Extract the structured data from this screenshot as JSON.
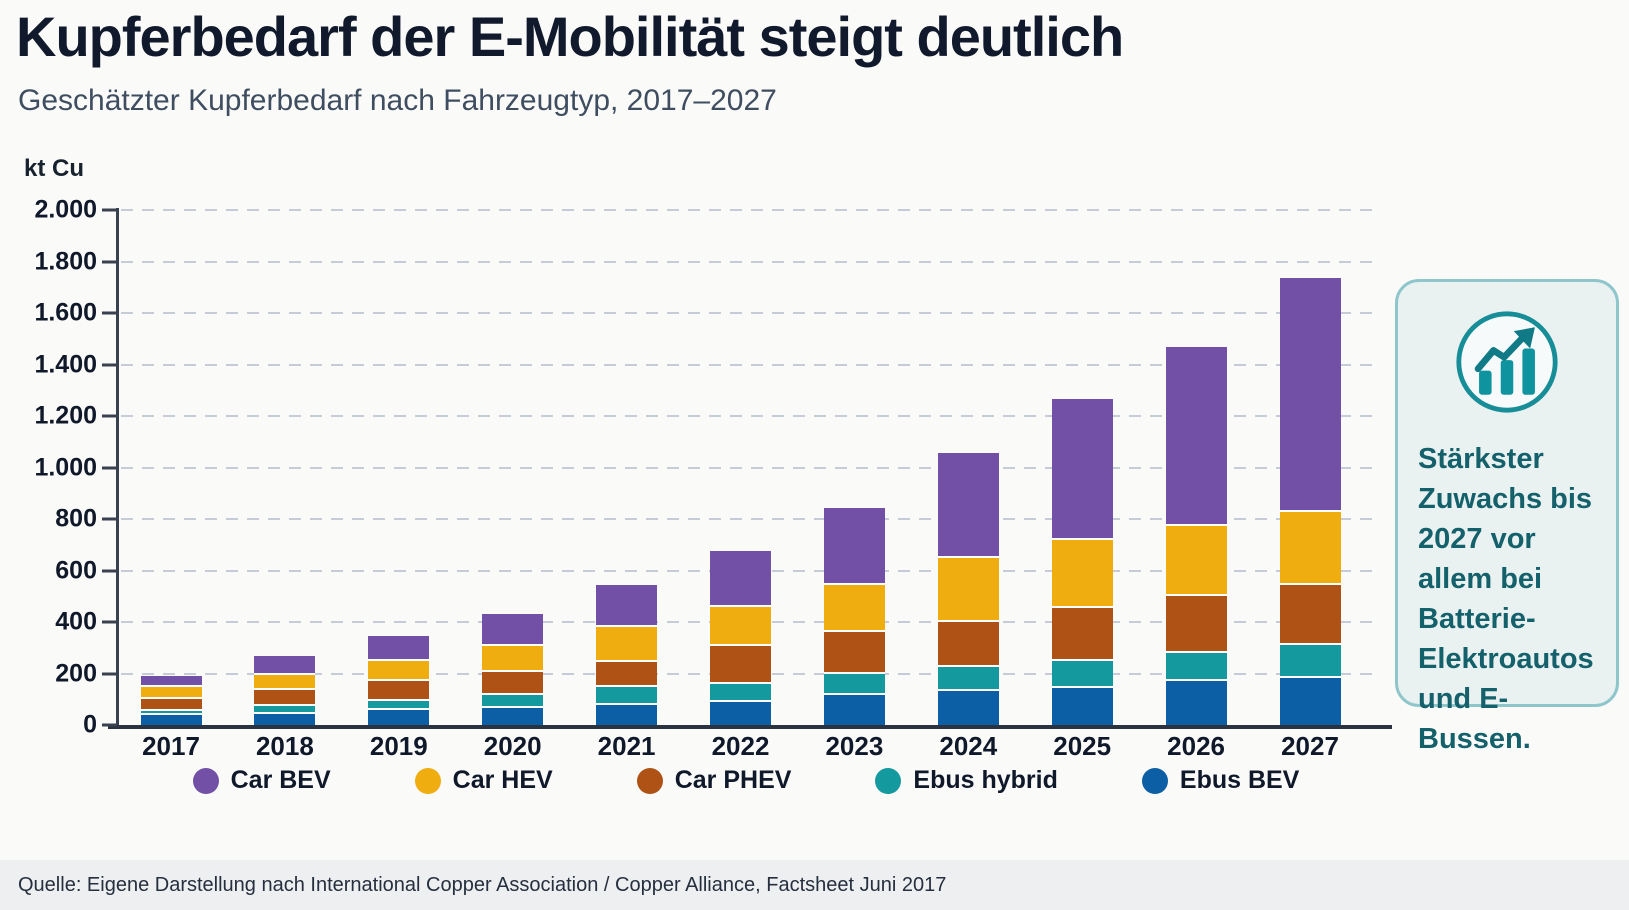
{
  "header": {
    "title": "Kupferbedarf der E-Mobilität steigt deutlich",
    "subtitle": "Geschätzter Kupferbedarf nach Fahrzeugtyp, 2017–2027"
  },
  "chart_data": {
    "type": "bar",
    "stacked": true,
    "unit_label": "kt Cu",
    "categories": [
      "2017",
      "2018",
      "2019",
      "2020",
      "2021",
      "2022",
      "2023",
      "2024",
      "2025",
      "2026",
      "2027"
    ],
    "series": [
      {
        "name": "Car BEV",
        "color": "#7150a5",
        "values": [
          36,
          64,
          88,
          117,
          158,
          207,
          290,
          399,
          537,
          690,
          900
        ]
      },
      {
        "name": "Car HEV",
        "color": "#efad10",
        "values": [
          48,
          62,
          80,
          100,
          133,
          155,
          185,
          247,
          267,
          272,
          285
        ]
      },
      {
        "name": "Car PHEV",
        "color": "#ae5315",
        "values": [
          43,
          61,
          75,
          87,
          100,
          145,
          164,
          176,
          203,
          220,
          230
        ]
      },
      {
        "name": "Ebus hybrid",
        "color": "#13999e",
        "values": [
          19,
          30,
          35,
          53,
          67,
          69,
          81,
          94,
          106,
          110,
          130
        ]
      },
      {
        "name": "Ebus BEV",
        "color": "#0c5fa5",
        "values": [
          45,
          51,
          68,
          73,
          87,
          99,
          123,
          139,
          152,
          177,
          190
        ]
      }
    ],
    "totals": [
      191,
      268,
      346,
      430,
      545,
      675,
      843,
      1055,
      1265,
      1469,
      1735
    ],
    "stack_order_bottom_to_top": [
      "Ebus BEV",
      "Ebus hybrid",
      "Car PHEV",
      "Car HEV",
      "Car BEV"
    ],
    "ylabel": "kt Cu",
    "ylim": [
      0,
      2000
    ],
    "y_ticks": [
      {
        "label": "2.000",
        "value": 2000
      },
      {
        "label": "1.800",
        "value": 1800
      },
      {
        "label": "1.600",
        "value": 1600
      },
      {
        "label": "1.400",
        "value": 1400
      },
      {
        "label": "1.200",
        "value": 1200
      },
      {
        "label": "1.000",
        "value": 1000
      },
      {
        "label": "800",
        "value": 800
      },
      {
        "label": "600",
        "value": 600
      },
      {
        "label": "400",
        "value": 400
      },
      {
        "label": "200",
        "value": 200
      },
      {
        "label": "0",
        "value": 0
      }
    ],
    "grid": "horizontal-dashed",
    "legend_position": "bottom"
  },
  "annotation": {
    "icon": "trend-up-chart-icon",
    "text": "Stärkster Zuwachs bis 2027 vor allem bei Batterie-Elektroautos und E-Bussen."
  },
  "footer": {
    "source": "Quelle: Eigene Darstellung nach International Copper Association / Copper Alliance, Factsheet Juni 2017"
  },
  "colors": {
    "accent_teal": "#14616b",
    "annotation_bg": "#e9f1f1",
    "annotation_border": "#8ec6cb",
    "icon_teal": "#0f949f",
    "gridline": "#c6ccd7",
    "axis": "#39404f",
    "footer_bg": "#edeff1",
    "background": "#fafaf9"
  }
}
